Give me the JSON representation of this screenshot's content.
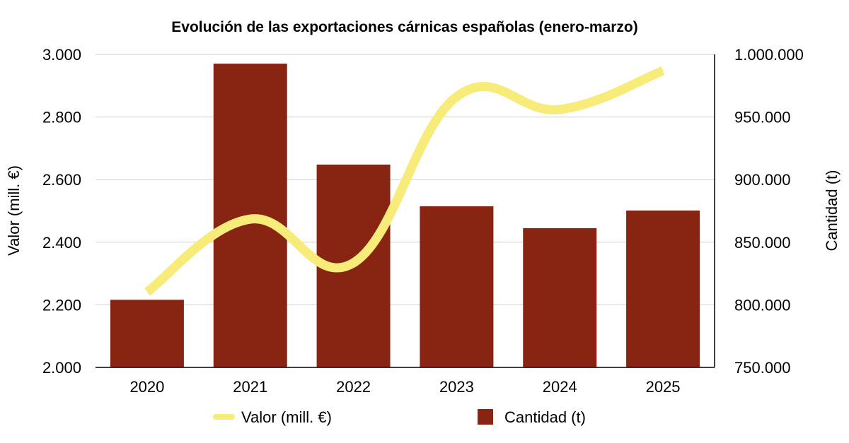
{
  "chart_data": {
    "type": "bar+line",
    "title": "Evolución de las exportaciones cárnicas españolas (enero-marzo)",
    "categories": [
      "2020",
      "2021",
      "2022",
      "2023",
      "2024",
      "2025"
    ],
    "series": [
      {
        "name": "Valor (mill. €)",
        "type": "line",
        "axis": "left",
        "color": "#f7eb79",
        "values": [
          2241,
          2474,
          2334,
          2865,
          2824,
          2948
        ]
      },
      {
        "name": "Cantidad (t)",
        "type": "bar",
        "axis": "right",
        "color": "#882412",
        "values": [
          804000,
          992600,
          912000,
          878700,
          861200,
          875300
        ]
      }
    ],
    "ylabel_left": "Valor (mill. €)",
    "ylabel_right": "Cantidad (t)",
    "ylim_left": [
      2000,
      3000
    ],
    "ylim_right": [
      750000,
      1000000
    ],
    "yticks_left": [
      "2.000",
      "2.200",
      "2.400",
      "2.600",
      "2.800",
      "3.000"
    ],
    "yticks_right": [
      "750.000",
      "800.000",
      "850.000",
      "900.000",
      "950.000",
      "1.000.000"
    ],
    "grid": true,
    "legend_position": "bottom"
  }
}
